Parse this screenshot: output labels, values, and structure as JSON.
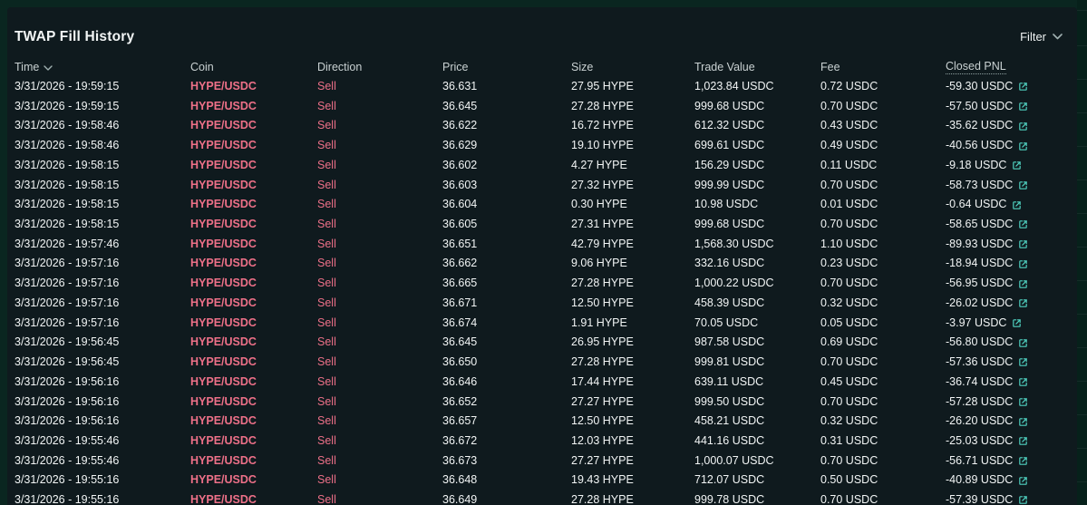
{
  "panel": {
    "title": "TWAP Fill History"
  },
  "filter": {
    "label": "Filter"
  },
  "colors": {
    "outer_bg": "#0a2620",
    "panel_bg": "#0f1a1e",
    "sell_red": "#ed7088",
    "link_teal": "#50d2c1",
    "header_text": "#c9d1d2",
    "row_text": "#f2f5f5"
  },
  "columns": [
    {
      "label": "Time",
      "sortable": true
    },
    {
      "label": "Coin"
    },
    {
      "label": "Direction"
    },
    {
      "label": "Price"
    },
    {
      "label": "Size"
    },
    {
      "label": "Trade Value"
    },
    {
      "label": "Fee"
    },
    {
      "label": "Closed PNL",
      "tooltip_underline": true
    }
  ],
  "rows": [
    {
      "time": "3/31/2026 - 19:59:15",
      "coin": "HYPE/USDC",
      "direction": "Sell",
      "price": "36.631",
      "size": "27.95 HYPE",
      "trade_value": "1,023.84 USDC",
      "fee": "0.72 USDC",
      "closed_pnl": "-59.30 USDC"
    },
    {
      "time": "3/31/2026 - 19:59:15",
      "coin": "HYPE/USDC",
      "direction": "Sell",
      "price": "36.645",
      "size": "27.28 HYPE",
      "trade_value": "999.68 USDC",
      "fee": "0.70 USDC",
      "closed_pnl": "-57.50 USDC"
    },
    {
      "time": "3/31/2026 - 19:58:46",
      "coin": "HYPE/USDC",
      "direction": "Sell",
      "price": "36.622",
      "size": "16.72 HYPE",
      "trade_value": "612.32 USDC",
      "fee": "0.43 USDC",
      "closed_pnl": "-35.62 USDC"
    },
    {
      "time": "3/31/2026 - 19:58:46",
      "coin": "HYPE/USDC",
      "direction": "Sell",
      "price": "36.629",
      "size": "19.10 HYPE",
      "trade_value": "699.61 USDC",
      "fee": "0.49 USDC",
      "closed_pnl": "-40.56 USDC"
    },
    {
      "time": "3/31/2026 - 19:58:15",
      "coin": "HYPE/USDC",
      "direction": "Sell",
      "price": "36.602",
      "size": "4.27 HYPE",
      "trade_value": "156.29 USDC",
      "fee": "0.11 USDC",
      "closed_pnl": "-9.18 USDC"
    },
    {
      "time": "3/31/2026 - 19:58:15",
      "coin": "HYPE/USDC",
      "direction": "Sell",
      "price": "36.603",
      "size": "27.32 HYPE",
      "trade_value": "999.99 USDC",
      "fee": "0.70 USDC",
      "closed_pnl": "-58.73 USDC"
    },
    {
      "time": "3/31/2026 - 19:58:15",
      "coin": "HYPE/USDC",
      "direction": "Sell",
      "price": "36.604",
      "size": "0.30 HYPE",
      "trade_value": "10.98 USDC",
      "fee": "0.01 USDC",
      "closed_pnl": "-0.64 USDC"
    },
    {
      "time": "3/31/2026 - 19:58:15",
      "coin": "HYPE/USDC",
      "direction": "Sell",
      "price": "36.605",
      "size": "27.31 HYPE",
      "trade_value": "999.68 USDC",
      "fee": "0.70 USDC",
      "closed_pnl": "-58.65 USDC"
    },
    {
      "time": "3/31/2026 - 19:57:46",
      "coin": "HYPE/USDC",
      "direction": "Sell",
      "price": "36.651",
      "size": "42.79 HYPE",
      "trade_value": "1,568.30 USDC",
      "fee": "1.10 USDC",
      "closed_pnl": "-89.93 USDC"
    },
    {
      "time": "3/31/2026 - 19:57:16",
      "coin": "HYPE/USDC",
      "direction": "Sell",
      "price": "36.662",
      "size": "9.06 HYPE",
      "trade_value": "332.16 USDC",
      "fee": "0.23 USDC",
      "closed_pnl": "-18.94 USDC"
    },
    {
      "time": "3/31/2026 - 19:57:16",
      "coin": "HYPE/USDC",
      "direction": "Sell",
      "price": "36.665",
      "size": "27.28 HYPE",
      "trade_value": "1,000.22 USDC",
      "fee": "0.70 USDC",
      "closed_pnl": "-56.95 USDC"
    },
    {
      "time": "3/31/2026 - 19:57:16",
      "coin": "HYPE/USDC",
      "direction": "Sell",
      "price": "36.671",
      "size": "12.50 HYPE",
      "trade_value": "458.39 USDC",
      "fee": "0.32 USDC",
      "closed_pnl": "-26.02 USDC"
    },
    {
      "time": "3/31/2026 - 19:57:16",
      "coin": "HYPE/USDC",
      "direction": "Sell",
      "price": "36.674",
      "size": "1.91 HYPE",
      "trade_value": "70.05 USDC",
      "fee": "0.05 USDC",
      "closed_pnl": "-3.97 USDC"
    },
    {
      "time": "3/31/2026 - 19:56:45",
      "coin": "HYPE/USDC",
      "direction": "Sell",
      "price": "36.645",
      "size": "26.95 HYPE",
      "trade_value": "987.58 USDC",
      "fee": "0.69 USDC",
      "closed_pnl": "-56.80 USDC"
    },
    {
      "time": "3/31/2026 - 19:56:45",
      "coin": "HYPE/USDC",
      "direction": "Sell",
      "price": "36.650",
      "size": "27.28 HYPE",
      "trade_value": "999.81 USDC",
      "fee": "0.70 USDC",
      "closed_pnl": "-57.36 USDC"
    },
    {
      "time": "3/31/2026 - 19:56:16",
      "coin": "HYPE/USDC",
      "direction": "Sell",
      "price": "36.646",
      "size": "17.44 HYPE",
      "trade_value": "639.11 USDC",
      "fee": "0.45 USDC",
      "closed_pnl": "-36.74 USDC"
    },
    {
      "time": "3/31/2026 - 19:56:16",
      "coin": "HYPE/USDC",
      "direction": "Sell",
      "price": "36.652",
      "size": "27.27 HYPE",
      "trade_value": "999.50 USDC",
      "fee": "0.70 USDC",
      "closed_pnl": "-57.28 USDC"
    },
    {
      "time": "3/31/2026 - 19:56:16",
      "coin": "HYPE/USDC",
      "direction": "Sell",
      "price": "36.657",
      "size": "12.50 HYPE",
      "trade_value": "458.21 USDC",
      "fee": "0.32 USDC",
      "closed_pnl": "-26.20 USDC"
    },
    {
      "time": "3/31/2026 - 19:55:46",
      "coin": "HYPE/USDC",
      "direction": "Sell",
      "price": "36.672",
      "size": "12.03 HYPE",
      "trade_value": "441.16 USDC",
      "fee": "0.31 USDC",
      "closed_pnl": "-25.03 USDC"
    },
    {
      "time": "3/31/2026 - 19:55:46",
      "coin": "HYPE/USDC",
      "direction": "Sell",
      "price": "36.673",
      "size": "27.27 HYPE",
      "trade_value": "1,000.07 USDC",
      "fee": "0.70 USDC",
      "closed_pnl": "-56.71 USDC"
    },
    {
      "time": "3/31/2026 - 19:55:16",
      "coin": "HYPE/USDC",
      "direction": "Sell",
      "price": "36.648",
      "size": "19.43 HYPE",
      "trade_value": "712.07 USDC",
      "fee": "0.50 USDC",
      "closed_pnl": "-40.89 USDC"
    },
    {
      "time": "3/31/2026 - 19:55:16",
      "coin": "HYPE/USDC",
      "direction": "Sell",
      "price": "36.649",
      "size": "27.28 HYPE",
      "trade_value": "999.78 USDC",
      "fee": "0.70 USDC",
      "closed_pnl": "-57.39 USDC"
    }
  ]
}
